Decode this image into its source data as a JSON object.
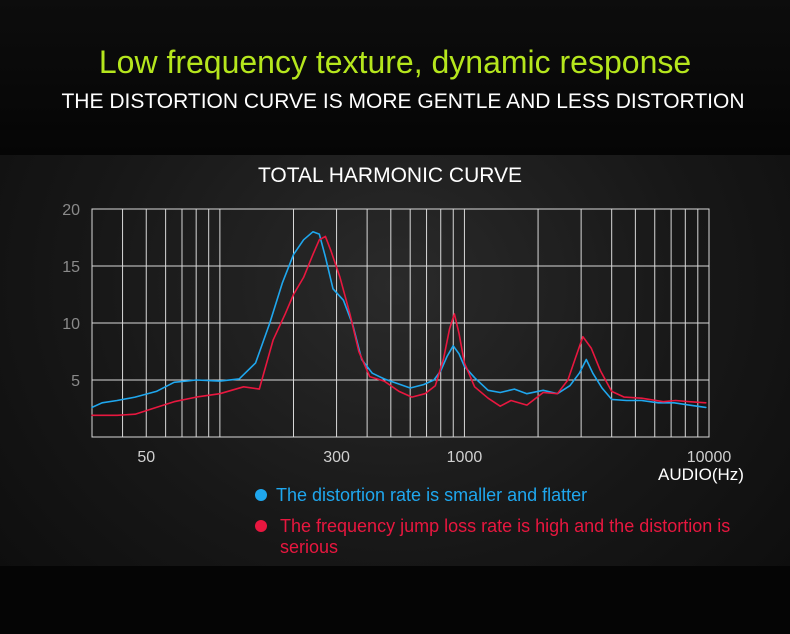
{
  "headline": "Low frequency texture, dynamic response",
  "subheadline": "THE DISTORTION CURVE IS MORE GENTLE AND LESS DISTORTION",
  "unit_label": "AUDIO(Hz)",
  "legend": {
    "blue": "The distortion rate is smaller and flatter",
    "red": "The frequency jump loss rate is high and the distortion is serious"
  },
  "colors": {
    "headline": "#b5e61d",
    "blue": "#1fa7ee",
    "red": "#e8173f"
  },
  "chart_data": {
    "type": "line",
    "title": "TOTAL HARMONIC CURVE",
    "x_scale": "log",
    "xlim": [
      30,
      10000
    ],
    "ylim": [
      0,
      20
    ],
    "grid": true,
    "y_ticks": [
      "5",
      "10",
      "15",
      "20"
    ],
    "x_ticks": [
      "50",
      "300",
      "1000",
      "10000"
    ],
    "legend_position": "bottom",
    "series": [
      {
        "name": "The distortion rate is smaller and flatter",
        "color": "#1fa7ee",
        "points": [
          [
            30,
            2.6
          ],
          [
            33,
            3.0
          ],
          [
            38,
            3.2
          ],
          [
            45,
            3.5
          ],
          [
            55,
            4.0
          ],
          [
            65,
            4.8
          ],
          [
            80,
            5.0
          ],
          [
            100,
            4.9
          ],
          [
            120,
            5.1
          ],
          [
            140,
            6.5
          ],
          [
            160,
            10
          ],
          [
            180,
            13.5
          ],
          [
            200,
            16
          ],
          [
            220,
            17.3
          ],
          [
            240,
            18
          ],
          [
            255,
            17.8
          ],
          [
            270,
            15.8
          ],
          [
            290,
            13
          ],
          [
            320,
            12
          ],
          [
            350,
            9.8
          ],
          [
            380,
            6.8
          ],
          [
            420,
            5.6
          ],
          [
            470,
            5.1
          ],
          [
            530,
            4.7
          ],
          [
            600,
            4.3
          ],
          [
            680,
            4.6
          ],
          [
            750,
            5.0
          ],
          [
            800,
            5.8
          ],
          [
            850,
            7.1
          ],
          [
            900,
            8.0
          ],
          [
            950,
            7.3
          ],
          [
            1000,
            6.2
          ],
          [
            1100,
            5.2
          ],
          [
            1250,
            4.1
          ],
          [
            1400,
            3.9
          ],
          [
            1600,
            4.2
          ],
          [
            1800,
            3.8
          ],
          [
            2100,
            4.1
          ],
          [
            2400,
            3.8
          ],
          [
            2700,
            4.5
          ],
          [
            2950,
            5.6
          ],
          [
            3150,
            6.8
          ],
          [
            3350,
            5.6
          ],
          [
            3650,
            4.3
          ],
          [
            4000,
            3.3
          ],
          [
            4600,
            3.2
          ],
          [
            5300,
            3.2
          ],
          [
            6200,
            3.0
          ],
          [
            7200,
            3.0
          ],
          [
            8300,
            2.8
          ],
          [
            9700,
            2.6
          ]
        ]
      },
      {
        "name": "The frequency jump loss rate is high and the distortion is serious",
        "color": "#e8173f",
        "points": [
          [
            30,
            1.9
          ],
          [
            38,
            1.9
          ],
          [
            45,
            2.0
          ],
          [
            55,
            2.6
          ],
          [
            65,
            3.1
          ],
          [
            80,
            3.5
          ],
          [
            100,
            3.8
          ],
          [
            125,
            4.4
          ],
          [
            145,
            4.2
          ],
          [
            165,
            8.5
          ],
          [
            185,
            10.8
          ],
          [
            200,
            12.5
          ],
          [
            220,
            14
          ],
          [
            240,
            16
          ],
          [
            255,
            17.3
          ],
          [
            270,
            17.6
          ],
          [
            285,
            16.3
          ],
          [
            310,
            14
          ],
          [
            340,
            10.8
          ],
          [
            370,
            7.5
          ],
          [
            410,
            5.3
          ],
          [
            470,
            4.9
          ],
          [
            540,
            4.0
          ],
          [
            610,
            3.5
          ],
          [
            690,
            3.8
          ],
          [
            760,
            4.5
          ],
          [
            820,
            6.8
          ],
          [
            870,
            9.5
          ],
          [
            910,
            10.8
          ],
          [
            950,
            9.1
          ],
          [
            1000,
            6.5
          ],
          [
            1100,
            4.4
          ],
          [
            1250,
            3.4
          ],
          [
            1400,
            2.7
          ],
          [
            1550,
            3.2
          ],
          [
            1800,
            2.8
          ],
          [
            2100,
            3.9
          ],
          [
            2400,
            3.8
          ],
          [
            2650,
            5.0
          ],
          [
            2850,
            7.0
          ],
          [
            3050,
            8.8
          ],
          [
            3300,
            7.8
          ],
          [
            3600,
            5.8
          ],
          [
            4000,
            4.0
          ],
          [
            4500,
            3.5
          ],
          [
            5300,
            3.4
          ],
          [
            6500,
            3.1
          ],
          [
            7300,
            3.2
          ],
          [
            8300,
            3.1
          ],
          [
            9700,
            3.0
          ]
        ]
      }
    ]
  }
}
